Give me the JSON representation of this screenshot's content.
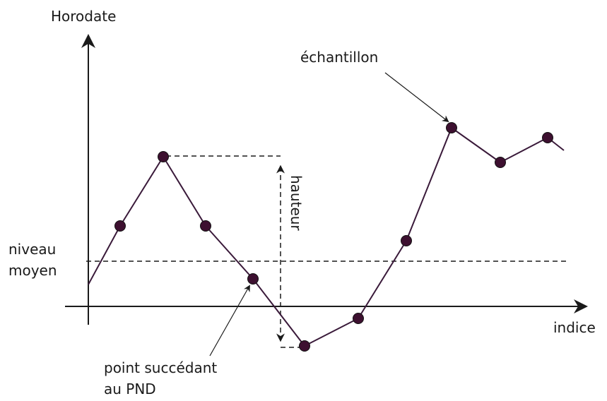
{
  "labels": {
    "y_axis": "Horodate",
    "x_axis": "indice",
    "mean_level_line1": "niveau",
    "mean_level_line2": "moyen",
    "height": "hauteur",
    "sample": "échantillon",
    "successor_line1": "point succédant",
    "successor_line2": "au PND"
  },
  "colors": {
    "line": "#3a1a3a",
    "point_fill": "#3d1030",
    "axis": "#1a1a1a"
  }
}
